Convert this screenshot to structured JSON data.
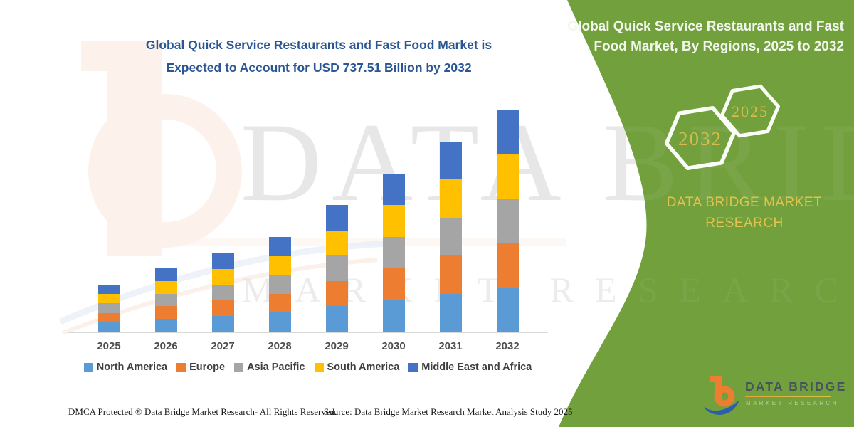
{
  "title": {
    "lines": [
      "Global Quick Service Restaurants and Fast Food Market is",
      "Expected to Account for USD 737.51 Billion by 2032"
    ]
  },
  "panel": {
    "title": "Global Quick Service Restaurants and Fast Food Market, By Regions, 2025 to 2032",
    "hexagons": [
      {
        "label": "2032"
      },
      {
        "label": "2025"
      }
    ],
    "brand_line1": "DATA BRIDGE MARKET",
    "brand_line2": "RESEARCH",
    "colors": {
      "panel_green": "#71A03D",
      "accent_yellow": "#E3C24D",
      "hexagon_stroke": "#FAFDF5"
    }
  },
  "logo": {
    "name": "DATA BRIDGE",
    "subtitle": "MARKET RESEARCH"
  },
  "watermark": {
    "line1": "DATA BRIDGE",
    "line2": "MARKET RESEARCH"
  },
  "footer": {
    "left": "DMCA Protected ® Data Bridge Market Research-  All Rights Reserved.",
    "source": "Source: Data Bridge Market Research  Market Analysis Study 2025"
  },
  "chart_data": {
    "type": "bar",
    "stacked": true,
    "title": "Global Quick Service Restaurants and Fast Food Market, By Regions, 2025 to 2032",
    "unit": "USD Billion",
    "categories": [
      "2025",
      "2026",
      "2027",
      "2028",
      "2029",
      "2030",
      "2031",
      "2032"
    ],
    "series": [
      {
        "name": "North America",
        "color": "#5B9BD5",
        "values": [
          31.2,
          42.1,
          52.0,
          62.9,
          84.1,
          105.0,
          126.2,
          147.5
        ]
      },
      {
        "name": "Europe",
        "color": "#ED7D31",
        "values": [
          31.2,
          42.1,
          52.0,
          62.9,
          84.1,
          105.0,
          126.2,
          147.5
        ]
      },
      {
        "name": "Asia Pacific",
        "color": "#A5A5A5",
        "values": [
          31.2,
          42.1,
          52.0,
          62.9,
          84.1,
          105.0,
          126.2,
          147.5
        ]
      },
      {
        "name": "South America",
        "color": "#FFC000",
        "values": [
          31.2,
          42.1,
          52.0,
          62.9,
          84.1,
          105.0,
          126.2,
          147.5
        ]
      },
      {
        "name": "Middle East and Africa",
        "color": "#4472C4",
        "values": [
          31.2,
          42.1,
          52.0,
          62.9,
          84.1,
          105.0,
          126.2,
          147.5
        ]
      }
    ],
    "totals": [
      156.0,
      210.4,
      260.1,
      314.4,
      420.7,
      524.8,
      631.2,
      737.5
    ],
    "stated_2032_total": "USD 737.51 Billion",
    "ylim": [
      0,
      780
    ],
    "grid": false,
    "legend_position": "bottom"
  }
}
